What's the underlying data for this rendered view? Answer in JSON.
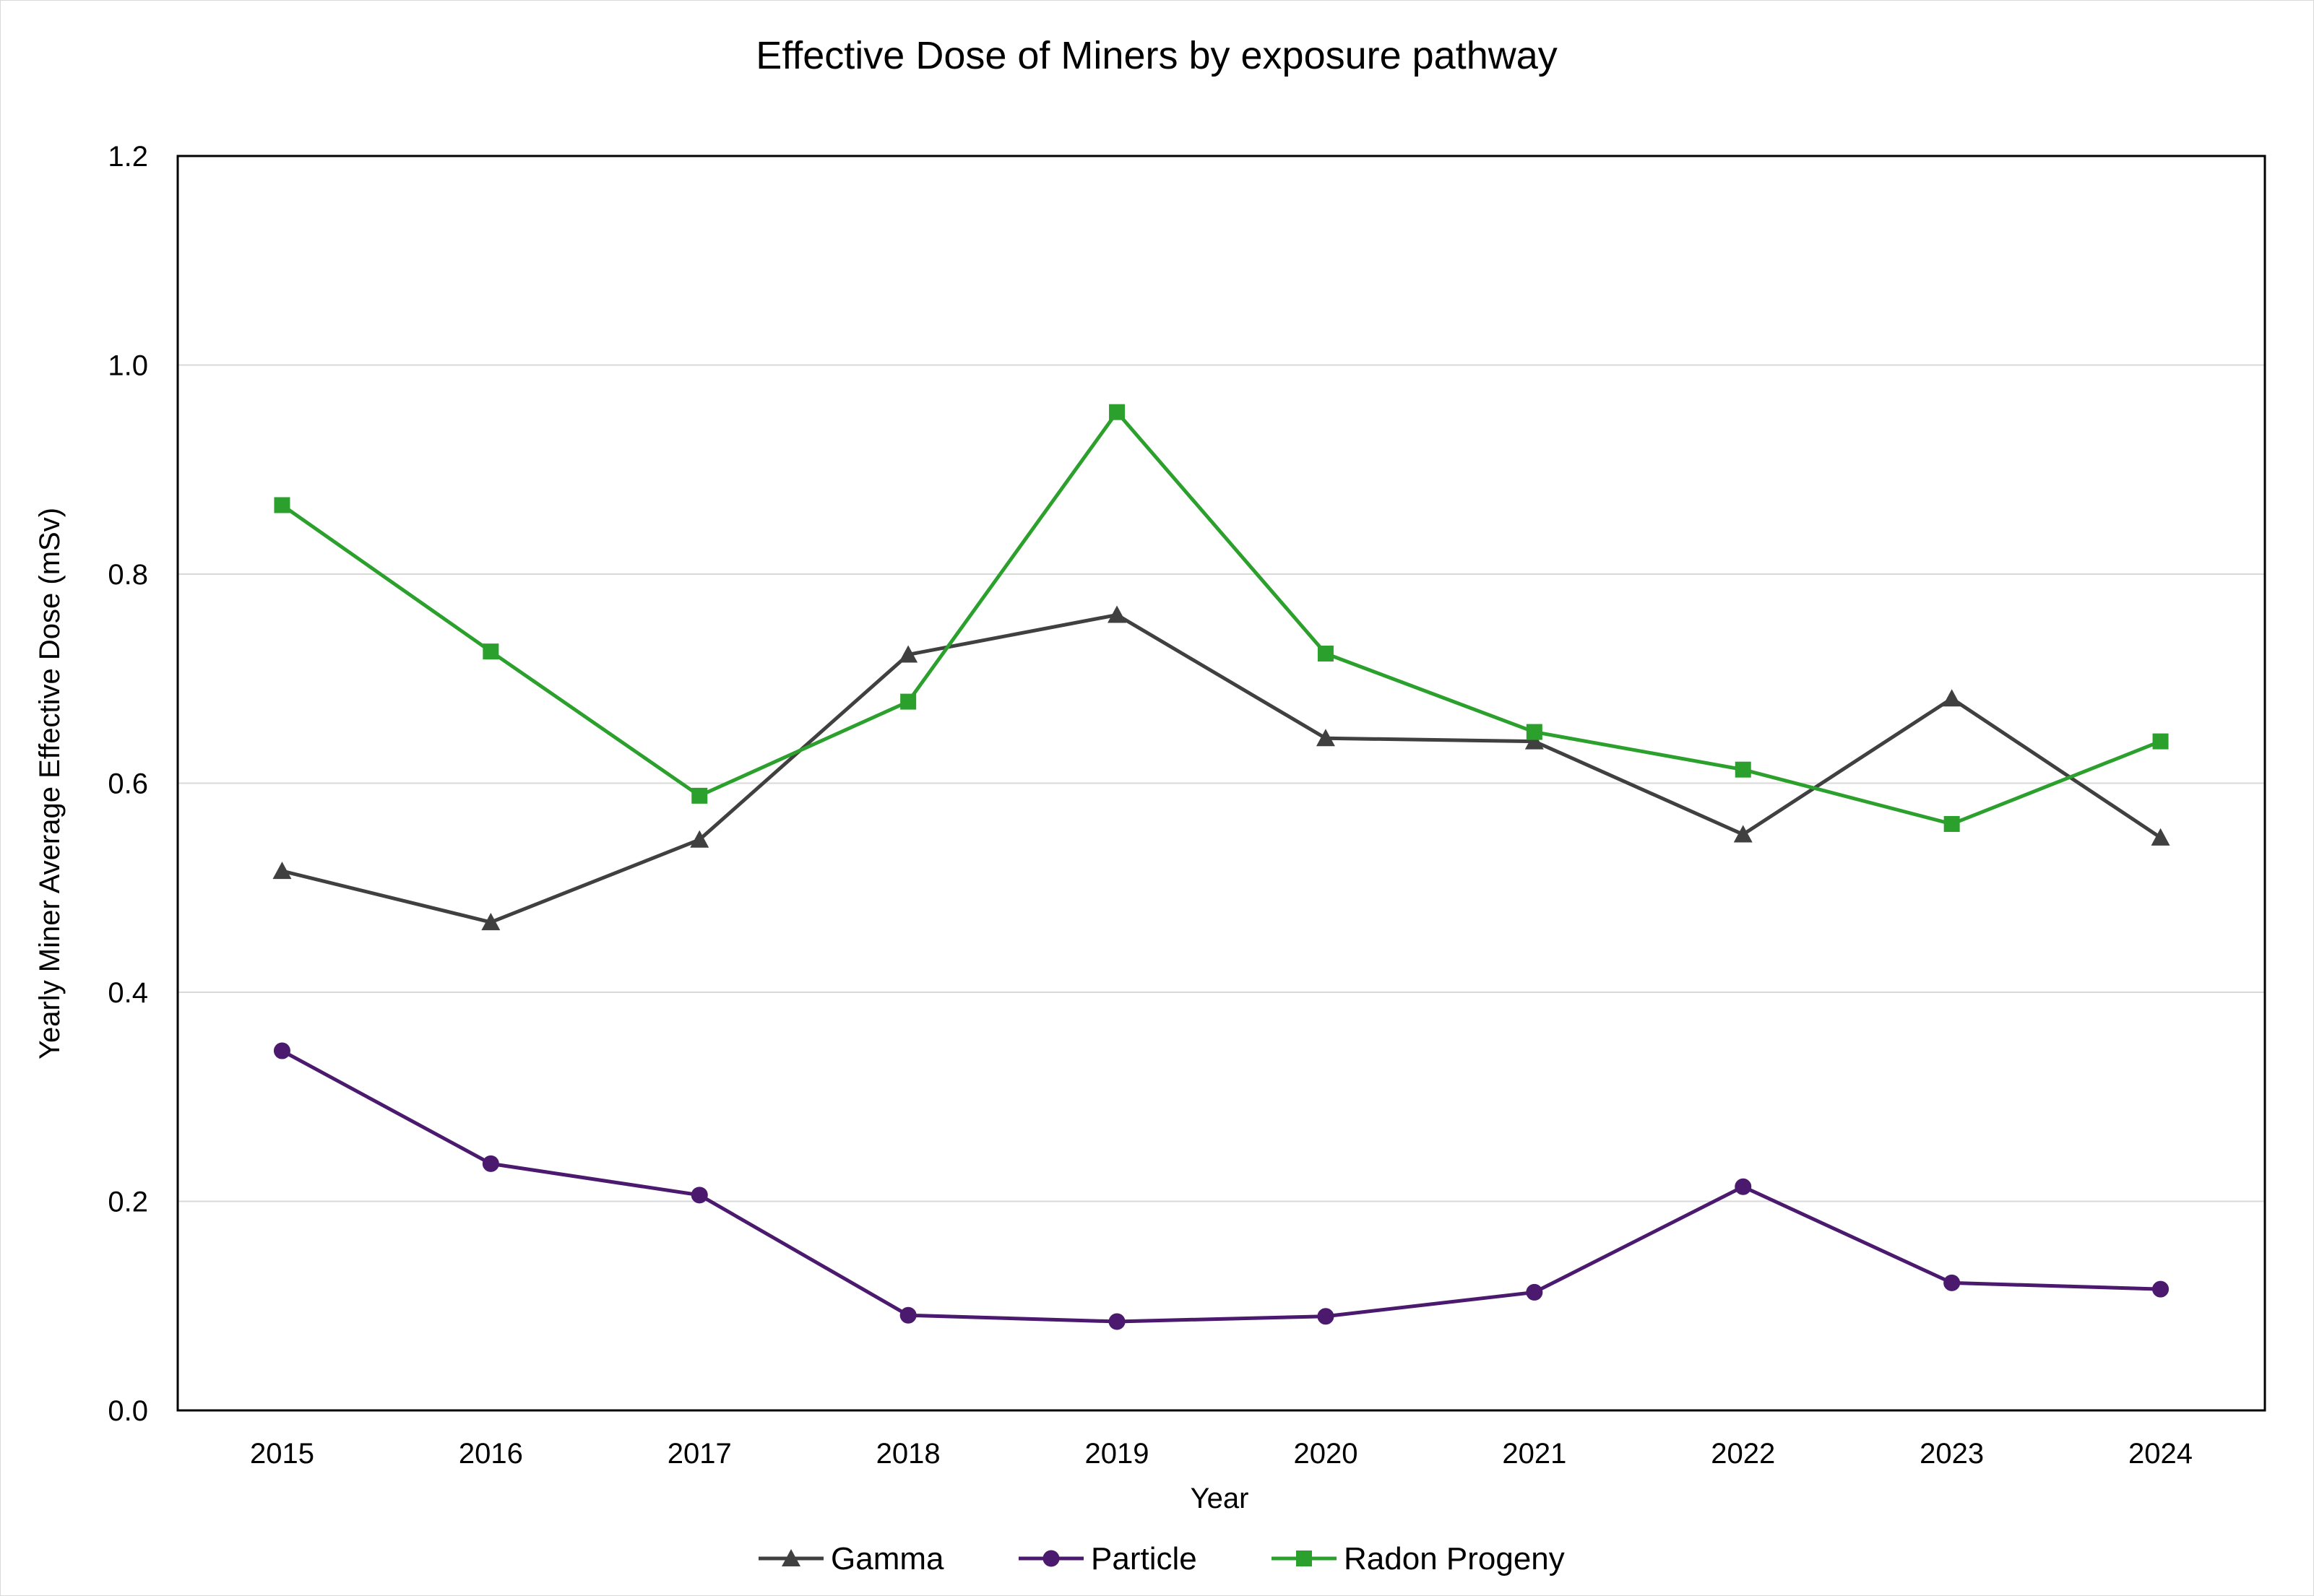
{
  "chart_data": {
    "type": "line",
    "title": "Effective Dose of Miners by exposure pathway",
    "xlabel": "Year",
    "ylabel": "Yearly Miner Average Effective Dose (mSv)",
    "categories": [
      "2015",
      "2016",
      "2017",
      "2018",
      "2019",
      "2020",
      "2021",
      "2022",
      "2023",
      "2024"
    ],
    "ylim": [
      0,
      1.2
    ],
    "yticks": [
      "0.0",
      "0.2",
      "0.4",
      "0.6",
      "0.8",
      "1.0",
      "1.2"
    ],
    "grid": true,
    "legend_position": "bottom",
    "series": [
      {
        "name": "Gamma",
        "color": "#404040",
        "marker": "triangle",
        "values": [
          0.516,
          0.467,
          0.546,
          0.723,
          0.761,
          0.643,
          0.64,
          0.551,
          0.681,
          0.548
        ]
      },
      {
        "name": "Particle",
        "color": "#4b1a6e",
        "marker": "circle",
        "values": [
          0.344,
          0.236,
          0.206,
          0.091,
          0.085,
          0.09,
          0.113,
          0.214,
          0.122,
          0.116
        ]
      },
      {
        "name": "Radon Progeny",
        "color": "#2ca02c",
        "marker": "square",
        "values": [
          0.866,
          0.726,
          0.588,
          0.678,
          0.955,
          0.724,
          0.649,
          0.613,
          0.561,
          0.64
        ]
      }
    ]
  }
}
